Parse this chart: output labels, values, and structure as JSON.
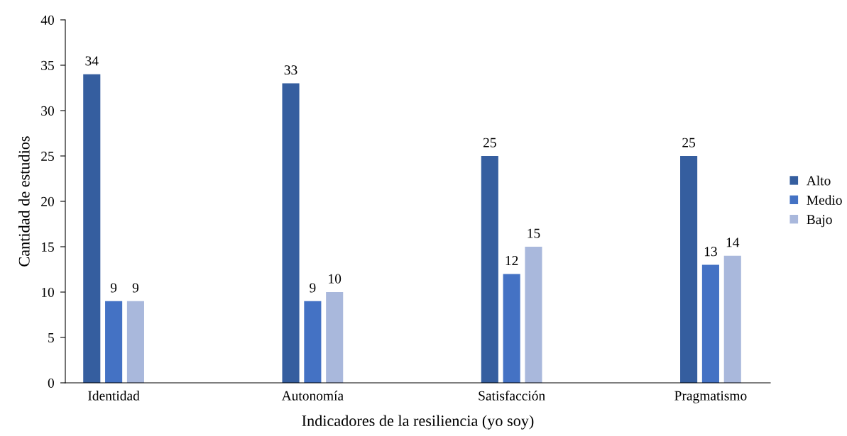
{
  "chart_data": {
    "type": "bar",
    "xlabel": "Indicadores de la resiliencia (yo soy)",
    "ylabel": "Cantidad de estudios",
    "categories": [
      "Identidad",
      "Autonomía",
      "Satisfacción",
      "Pragmatismo"
    ],
    "series": [
      {
        "name": "Alto",
        "color": "#355e9f",
        "values": [
          34,
          33,
          25,
          25
        ]
      },
      {
        "name": "Medio",
        "color": "#4472c4",
        "values": [
          9,
          9,
          12,
          13
        ]
      },
      {
        "name": "Bajo",
        "color": "#a9b8dc",
        "values": [
          9,
          10,
          15,
          14
        ]
      }
    ],
    "ylim": [
      0,
      40
    ],
    "yticks": [
      0,
      5,
      10,
      15,
      20,
      25,
      30,
      35,
      40
    ],
    "data_labels": true,
    "grid": false,
    "legend": "right"
  }
}
